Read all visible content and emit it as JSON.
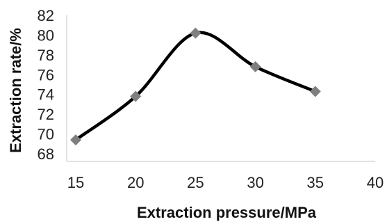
{
  "chart_data": {
    "type": "line",
    "title": "",
    "xlabel": "Extraction pressure/MPa",
    "ylabel": "Extraction rate/%",
    "x_ticks": [
      15,
      20,
      25,
      30,
      35,
      40
    ],
    "y_ticks": [
      68,
      70,
      72,
      74,
      76,
      78,
      80,
      82
    ],
    "xlim": [
      15,
      40
    ],
    "ylim": [
      68,
      82
    ],
    "grid": false,
    "legend": "none",
    "smooth": true,
    "series": [
      {
        "x": [
          15,
          20,
          25,
          30,
          35
        ],
        "y": [
          69.4,
          73.8,
          80.2,
          76.8,
          74.3
        ],
        "line_color": "#000000",
        "marker": "diamond",
        "marker_color": "#7f7f7f"
      }
    ]
  }
}
